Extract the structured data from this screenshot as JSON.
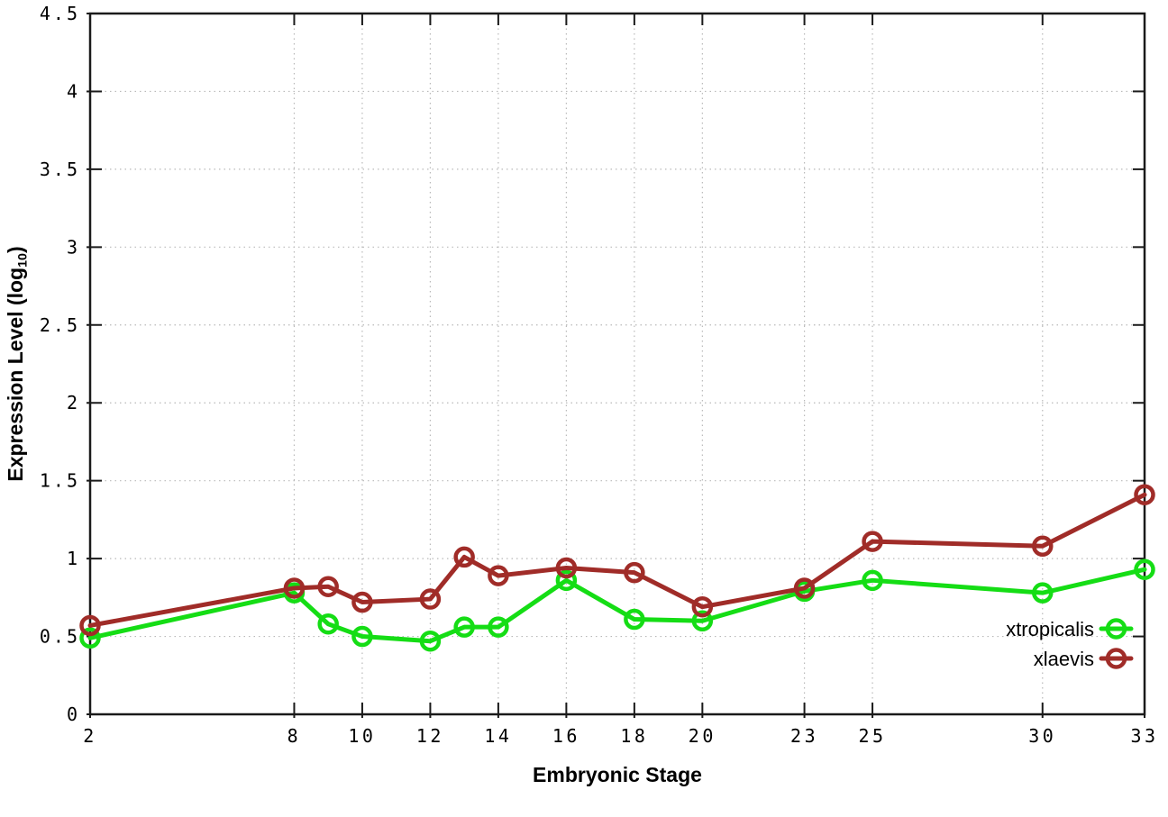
{
  "chart_data": {
    "type": "line",
    "title": "",
    "xlabel": "Embryonic Stage",
    "ylabel": "Expression Level (log10)",
    "ylabel_parts": {
      "prefix": "Expression Level (log",
      "subscript": "10",
      "suffix": ")"
    },
    "x": [
      2,
      8,
      9,
      10,
      12,
      13,
      14,
      16,
      18,
      20,
      23,
      25,
      30,
      33
    ],
    "series": [
      {
        "name": "xtropicalis",
        "color": "#15dd15",
        "marker": "open-circle",
        "values": [
          0.49,
          0.78,
          0.58,
          0.5,
          0.47,
          0.56,
          0.56,
          0.86,
          0.61,
          0.6,
          0.79,
          0.86,
          0.78,
          0.93
        ]
      },
      {
        "name": "xlaevis",
        "color": "#a02c28",
        "marker": "open-circle",
        "values": [
          0.57,
          0.81,
          0.82,
          0.72,
          0.74,
          1.01,
          0.89,
          0.94,
          0.91,
          0.69,
          0.81,
          1.11,
          1.08,
          1.41
        ]
      }
    ],
    "xlim": [
      2,
      33
    ],
    "ylim": [
      0,
      4.5
    ],
    "xtick_values": [
      2,
      8,
      10,
      12,
      14,
      16,
      18,
      20,
      23,
      25,
      30,
      33
    ],
    "xtick_labels": [
      "2",
      "8",
      "10",
      "12",
      "14",
      "16",
      "18",
      "20",
      "23",
      "25",
      "30",
      "33"
    ],
    "ytick_values": [
      0,
      0.5,
      1,
      1.5,
      2,
      2.5,
      3,
      3.5,
      4,
      4.5
    ],
    "ytick_labels": [
      "0",
      "0.5",
      "1",
      "1.5",
      "2",
      "2.5",
      "3",
      "3.5",
      "4",
      "4.5"
    ],
    "grid": "dotted",
    "legend": {
      "position": "inside-bottom-right",
      "entries": [
        "xtropicalis",
        "xlaevis"
      ]
    },
    "colors": {
      "axis": "#1a1a1a",
      "grid": "#b9b9b9",
      "text": "#000000"
    }
  }
}
